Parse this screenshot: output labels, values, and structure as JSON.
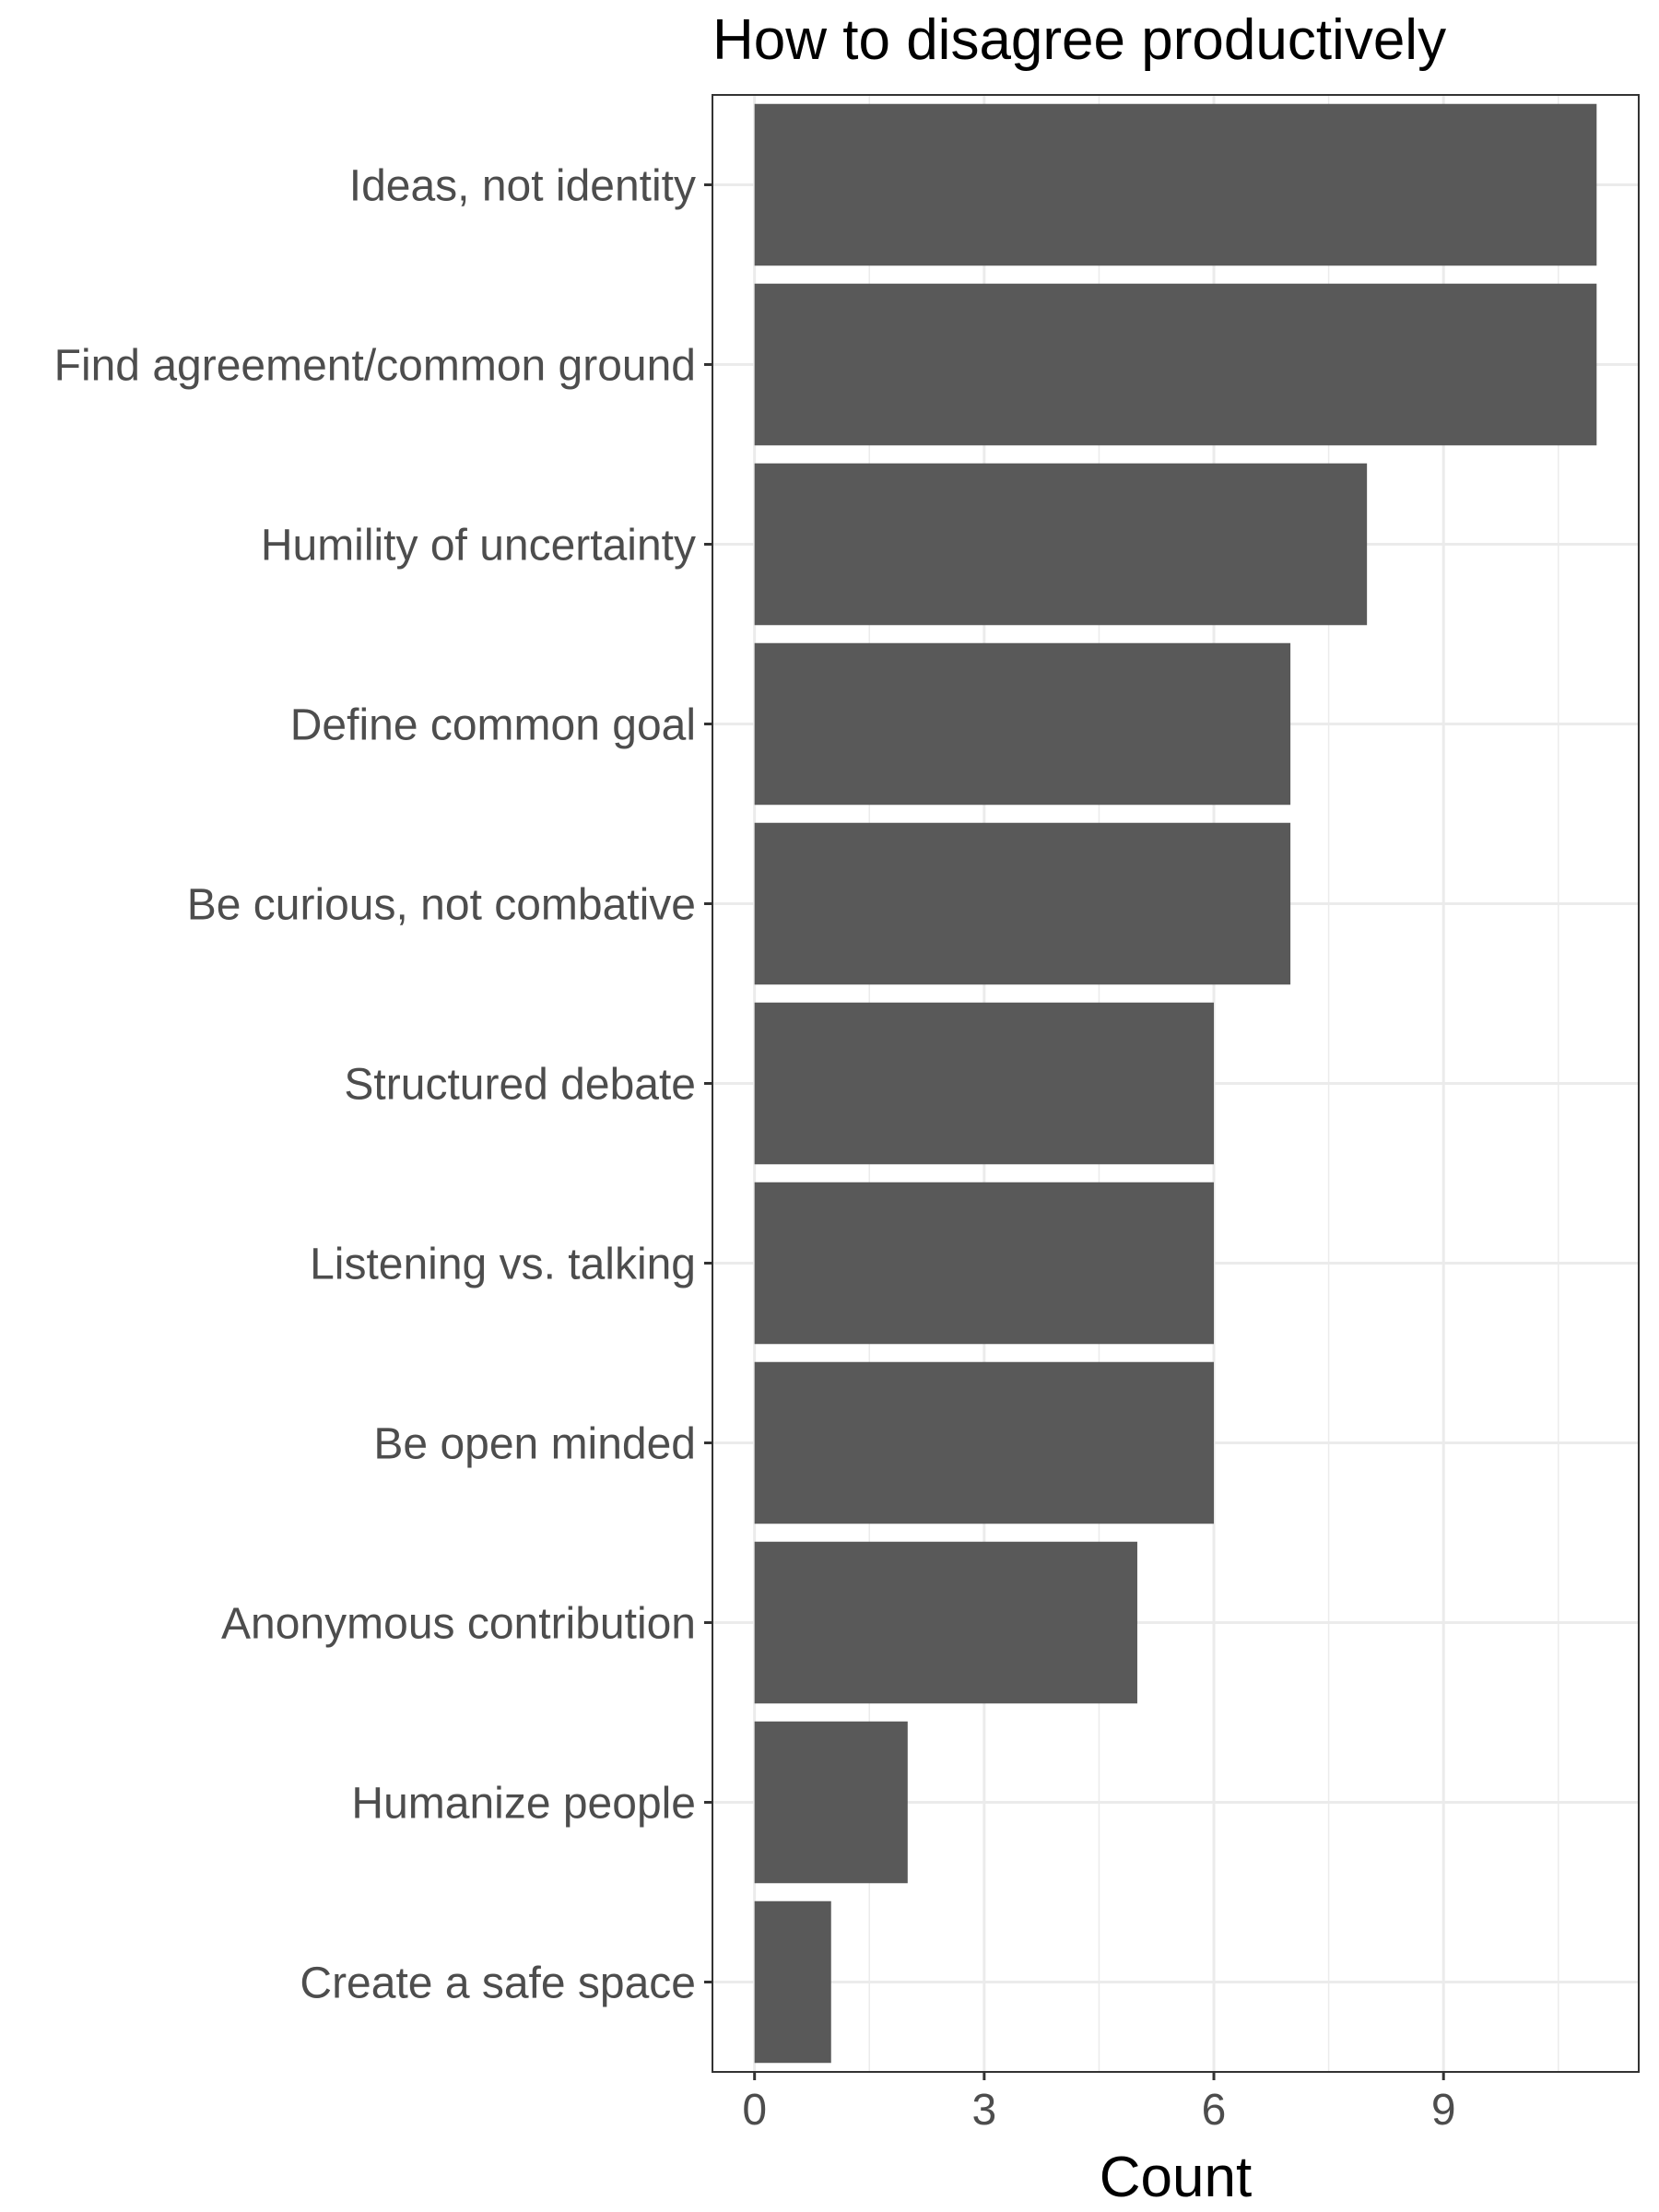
{
  "chart_data": {
    "type": "bar",
    "orientation": "horizontal",
    "title": "How to disagree productively",
    "xlabel": "Count",
    "ylabel": "",
    "categories": [
      "Ideas, not identity",
      "Find agreement/common ground",
      "Humility of uncertainty",
      "Define common goal",
      "Be curious, not combative",
      "Structured debate",
      "Listening vs. talking",
      "Be open minded",
      "Anonymous contribution",
      "Humanize people",
      "Create a safe space"
    ],
    "values": [
      11,
      11,
      8,
      7,
      7,
      6,
      6,
      6,
      5,
      2,
      1
    ],
    "xlim": [
      -0.55,
      11.55
    ],
    "xticks": [
      0,
      3,
      6,
      9
    ],
    "grid": true,
    "legend": "none",
    "bar_color": "#595959",
    "grid_color": "#ebebeb",
    "border_color": "#333333"
  }
}
